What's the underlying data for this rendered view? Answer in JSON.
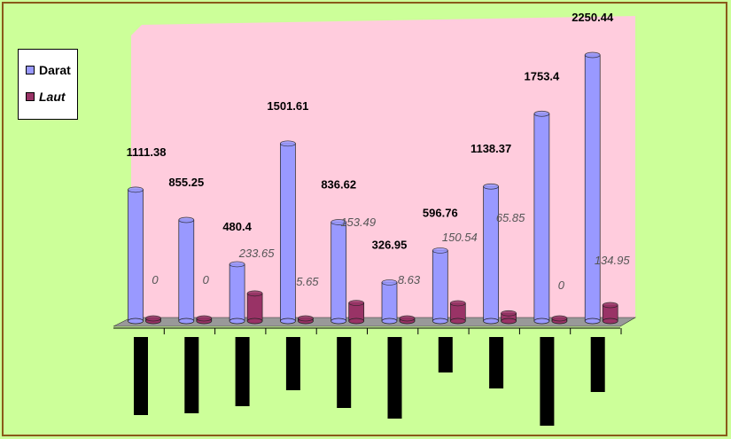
{
  "chart_data": {
    "type": "bar",
    "title": "",
    "xlabel": "",
    "ylabel": "",
    "categories": [
      "",
      "",
      "",
      "",
      "",
      "",
      "",
      "",
      "",
      ""
    ],
    "series": [
      {
        "name": "Darat",
        "color": "#9999ff",
        "values": [
          1111.38,
          855.25,
          480.4,
          1501.61,
          836.62,
          326.95,
          596.76,
          1138.37,
          1753.4,
          2250.44
        ]
      },
      {
        "name": "Laut",
        "color": "#993366",
        "values": [
          0,
          0,
          233.65,
          5.65,
          153.49,
          8.63,
          150.54,
          65.85,
          0,
          134.95
        ]
      }
    ],
    "darat_labels": [
      "1111.38",
      "855.25",
      "480.4",
      "1501.61",
      "836.62",
      "326.95",
      "596.76",
      "1138.37",
      "1753.4",
      "2250.44"
    ],
    "laut_labels": [
      "0",
      "0",
      "233.65",
      "5.65",
      "153.49",
      "8.63",
      "150.54",
      "65.85",
      "0",
      "134.95"
    ],
    "ylim": [
      0,
      2400
    ],
    "legend": "left",
    "grid": false,
    "plot_background": "#ffccdd",
    "floor_color": "#999999",
    "page_background": "#ccff99"
  },
  "legend": {
    "darat": "Darat",
    "laut": "Laut"
  }
}
